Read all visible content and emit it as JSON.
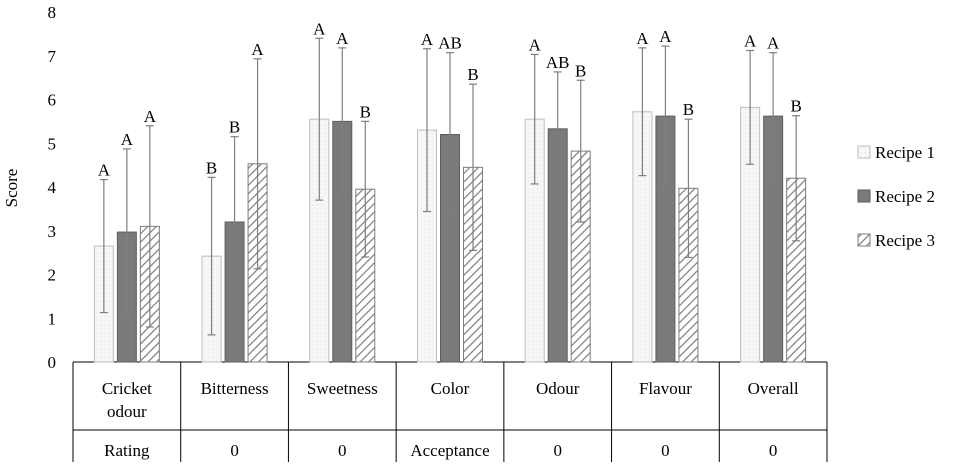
{
  "chart_data": {
    "type": "bar",
    "ylabel": "Score",
    "ylim": [
      0,
      8
    ],
    "yticks": [
      0,
      1,
      2,
      3,
      4,
      5,
      6,
      7,
      8
    ],
    "grid": false,
    "legend_position": "right",
    "categories": [
      [
        "Cricket",
        "odour"
      ],
      [
        "Bitterness"
      ],
      [
        "Sweetness"
      ],
      [
        "Color"
      ],
      [
        "Odour"
      ],
      [
        "Flavour"
      ],
      [
        "Overall"
      ]
    ],
    "category_groups": [
      "Rating",
      "0",
      "0",
      "Acceptance",
      "0",
      "0",
      "0"
    ],
    "series": [
      {
        "name": "Recipe 1",
        "values": [
          2.65,
          2.42,
          5.55,
          5.3,
          5.55,
          5.72,
          5.82
        ],
        "error": [
          1.52,
          1.8,
          1.85,
          1.86,
          1.48,
          1.46,
          1.3
        ],
        "letters": [
          "A",
          "B",
          "A",
          "A",
          "A",
          "A",
          "A"
        ]
      },
      {
        "name": "Recipe 2",
        "values": [
          2.97,
          3.2,
          5.5,
          5.2,
          5.33,
          5.62,
          5.62
        ],
        "error": [
          1.9,
          1.95,
          1.68,
          1.87,
          1.3,
          1.6,
          1.45
        ],
        "letters": [
          "A",
          "B",
          "A",
          "AB",
          "AB",
          "A",
          "A"
        ]
      },
      {
        "name": "Recipe 3",
        "values": [
          3.1,
          4.53,
          3.95,
          4.45,
          4.82,
          3.97,
          4.2
        ],
        "error": [
          2.3,
          2.4,
          1.55,
          1.9,
          1.62,
          1.58,
          1.43
        ],
        "letters": [
          "A",
          "A",
          "B",
          "B",
          "B",
          "B",
          "B"
        ]
      }
    ],
    "colors": {
      "recipe1_fill": "#f7f7f7",
      "recipe1_stroke": "#bdbdbd",
      "recipe2_fill": "#7a7a7a",
      "recipe2_stroke": "#5e5e5e",
      "recipe3_stroke": "#7c7c7c",
      "axis": "#000000",
      "errorbar": "#7f7f7f"
    }
  }
}
